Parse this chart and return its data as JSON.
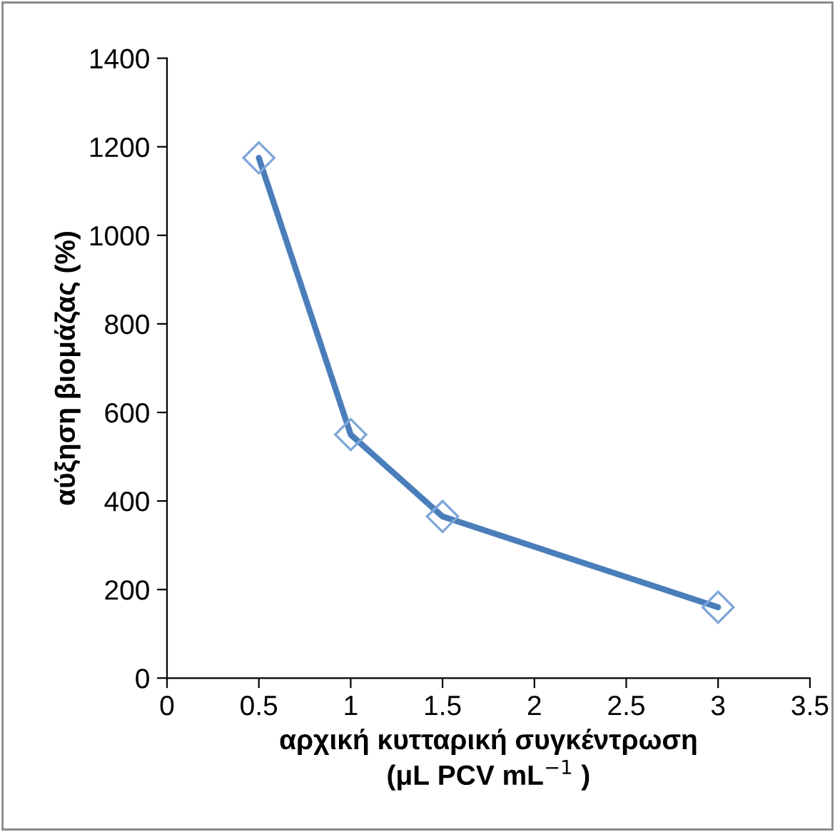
{
  "chart_data": {
    "type": "line",
    "xlabel": "αρχική κυτταρική συγκέντρωση\n(μL PCV mL$^{−1}$ )",
    "ylabel": "αύξηση βιομάζας (%)",
    "x": [
      0.5,
      1,
      1.5,
      3
    ],
    "series": [
      {
        "color": "#4a7ebb",
        "values": [
          1175,
          550,
          365,
          160
        ]
      }
    ],
    "xlim": [
      0,
      3.5
    ],
    "xticks": [
      0,
      0.5,
      1,
      1.5,
      2,
      2.5,
      3,
      3.5
    ],
    "ylim": [
      0,
      1400
    ],
    "yticks": [
      0,
      200,
      400,
      600,
      800,
      1000,
      1200,
      1400
    ],
    "marker": "diamond",
    "line_style": "solid",
    "grid": false
  }
}
